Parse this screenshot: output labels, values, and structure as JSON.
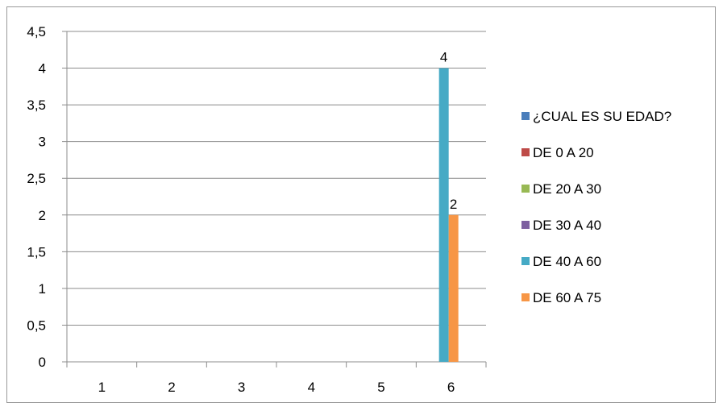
{
  "chart_data": {
    "type": "bar",
    "categories": [
      "1",
      "2",
      "3",
      "4",
      "5",
      "6"
    ],
    "series": [
      {
        "name": "¿CUAL ES SU EDAD?",
        "color": "#4a7ebb",
        "values": [
          null,
          null,
          null,
          null,
          null,
          null
        ]
      },
      {
        "name": "DE 0 A 20",
        "color": "#be4b48",
        "values": [
          null,
          null,
          null,
          null,
          null,
          null
        ]
      },
      {
        "name": "DE 20 A 30",
        "color": "#98b954",
        "values": [
          null,
          null,
          null,
          null,
          null,
          null
        ]
      },
      {
        "name": "DE 30 A 40",
        "color": "#7d60a0",
        "values": [
          null,
          null,
          null,
          null,
          null,
          null
        ]
      },
      {
        "name": "DE 40 A 60",
        "color": "#46aac5",
        "values": [
          null,
          null,
          null,
          null,
          null,
          4
        ]
      },
      {
        "name": "DE 60 A 75",
        "color": "#f79646",
        "values": [
          null,
          null,
          null,
          null,
          null,
          2
        ]
      }
    ],
    "yticks": [
      "0",
      "0,5",
      "1",
      "1,5",
      "2",
      "2,5",
      "3",
      "3,5",
      "4",
      "4,5"
    ],
    "ylim": [
      0,
      4.5
    ],
    "data_labels": [
      "4",
      "2"
    ],
    "grid": true,
    "legend_position": "right",
    "title": "",
    "xlabel": "",
    "ylabel": ""
  }
}
